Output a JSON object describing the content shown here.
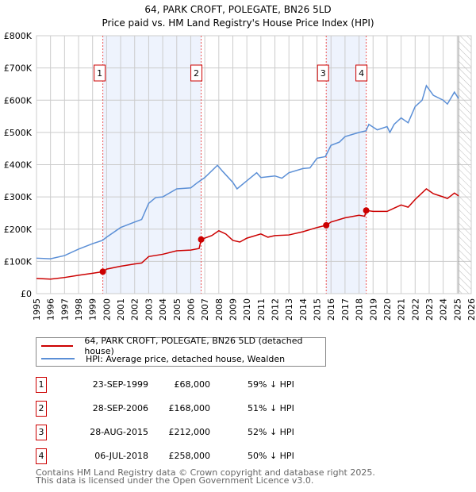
{
  "chart_data": {
    "type": "line",
    "title": "64, PARK CROFT, POLEGATE, BN26 5LD",
    "subtitle": "Price paid vs. HM Land Registry's House Price Index (HPI)",
    "xlim": [
      1995,
      2026
    ],
    "ylim": [
      0,
      800000
    ],
    "x_ticks": [
      "1995",
      "1996",
      "1997",
      "1998",
      "1999",
      "2000",
      "2001",
      "2002",
      "2003",
      "2004",
      "2005",
      "2006",
      "2007",
      "2008",
      "2009",
      "2010",
      "2011",
      "2012",
      "2013",
      "2014",
      "2015",
      "2016",
      "2017",
      "2018",
      "2019",
      "2020",
      "2021",
      "2022",
      "2023",
      "2024",
      "2025",
      "2026"
    ],
    "y_ticks": [
      {
        "v": 0,
        "label": "£0"
      },
      {
        "v": 100000,
        "label": "£100K"
      },
      {
        "v": 200000,
        "label": "£200K"
      },
      {
        "v": 300000,
        "label": "£300K"
      },
      {
        "v": 400000,
        "label": "£400K"
      },
      {
        "v": 500000,
        "label": "£500K"
      },
      {
        "v": 600000,
        "label": "£600K"
      },
      {
        "v": 700000,
        "label": "£700K"
      },
      {
        "v": 800000,
        "label": "£800K"
      }
    ],
    "grid": true,
    "forecast_hatch_from": 2025.1,
    "shaded_periods": [
      [
        1999.73,
        2006.74
      ],
      [
        2015.66,
        2018.51
      ]
    ],
    "series": [
      {
        "name": "64, PARK CROFT, POLEGATE, BN26 5LD (detached house)",
        "color": "#cc0000",
        "x": [
          1995,
          1996,
          1997,
          1998,
          1999,
          1999.73,
          2000,
          2001,
          2002,
          2002.5,
          2003,
          2004,
          2005,
          2006,
          2006.6,
          2006.74,
          2007.5,
          2008,
          2008.5,
          2009,
          2009.5,
          2010,
          2011,
          2011.5,
          2012,
          2013,
          2014,
          2015,
          2015.66,
          2016,
          2017,
          2018,
          2018.4,
          2018.51,
          2019,
          2020,
          2020.5,
          2021,
          2021.5,
          2022,
          2022.8,
          2023.3,
          2024,
          2024.3,
          2024.8,
          2025.1
        ],
        "y": [
          47000,
          45000,
          50000,
          57000,
          63000,
          68000,
          76000,
          85000,
          92000,
          95000,
          115000,
          122000,
          133000,
          135000,
          140000,
          168000,
          180000,
          195000,
          185000,
          165000,
          160000,
          172000,
          185000,
          175000,
          180000,
          182000,
          192000,
          205000,
          212000,
          222000,
          235000,
          243000,
          240000,
          258000,
          255000,
          255000,
          265000,
          275000,
          268000,
          292000,
          325000,
          310000,
          300000,
          295000,
          312000,
          303000
        ]
      },
      {
        "name": "HPI: Average price, detached house, Wealden",
        "color": "#5b8fd6",
        "x": [
          1995,
          1996,
          1997,
          1998,
          1999,
          1999.7,
          2000,
          2001,
          2002,
          2002.5,
          2003,
          2003.5,
          2004,
          2005,
          2006,
          2006.5,
          2007,
          2007.9,
          2008.3,
          2009,
          2009.3,
          2010,
          2010.7,
          2011,
          2012,
          2012.5,
          2013,
          2014,
          2014.5,
          2015,
          2015.6,
          2016,
          2016.6,
          2017,
          2018,
          2018.5,
          2018.7,
          2019.3,
          2020,
          2020.2,
          2020.5,
          2021,
          2021.5,
          2022,
          2022.5,
          2022.8,
          2023.3,
          2024,
          2024.3,
          2024.8,
          2025.1
        ],
        "y": [
          110000,
          108000,
          118000,
          138000,
          155000,
          165000,
          175000,
          205000,
          222000,
          230000,
          280000,
          298000,
          300000,
          325000,
          328000,
          345000,
          360000,
          398000,
          378000,
          345000,
          325000,
          350000,
          375000,
          360000,
          365000,
          358000,
          375000,
          388000,
          390000,
          420000,
          425000,
          460000,
          470000,
          487000,
          500000,
          505000,
          525000,
          508000,
          518000,
          500000,
          525000,
          545000,
          530000,
          580000,
          600000,
          645000,
          615000,
          600000,
          588000,
          625000,
          605000
        ]
      }
    ],
    "sales": [
      {
        "n": "1",
        "date": "23-SEP-1999",
        "price": "£68,000",
        "hpi": "59% ↓ HPI",
        "x": 1999.73,
        "y": 68000
      },
      {
        "n": "2",
        "date": "28-SEP-2006",
        "price": "£168,000",
        "hpi": "51% ↓ HPI",
        "x": 2006.74,
        "y": 168000
      },
      {
        "n": "3",
        "date": "28-AUG-2015",
        "price": "£212,000",
        "hpi": "52% ↓ HPI",
        "x": 2015.66,
        "y": 212000
      },
      {
        "n": "4",
        "date": "06-JUL-2018",
        "price": "£258,000",
        "hpi": "50% ↓ HPI",
        "x": 2018.51,
        "y": 258000
      }
    ]
  },
  "footer": {
    "line1": "Contains HM Land Registry data © Crown copyright and database right 2025.",
    "line2": "This data is licensed under the Open Government Licence v3.0."
  }
}
